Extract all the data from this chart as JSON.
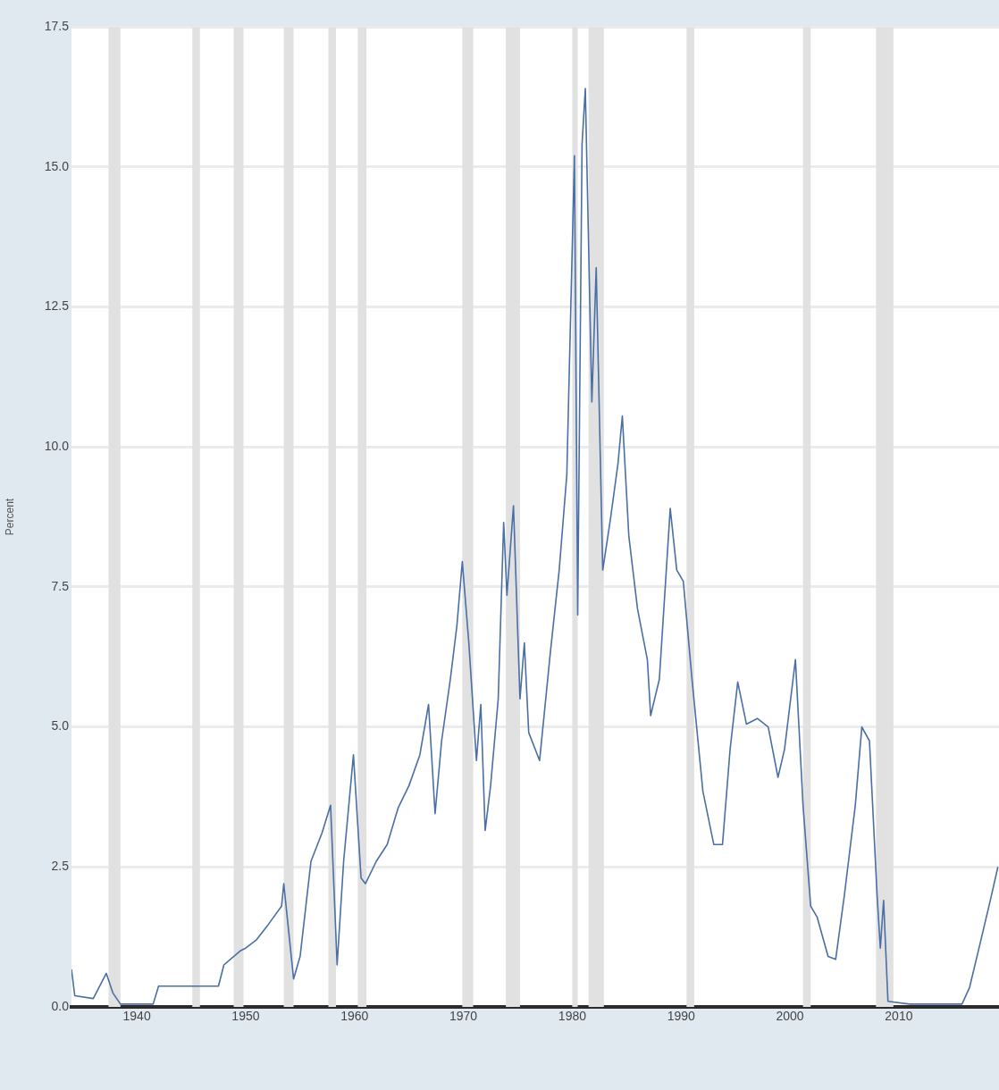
{
  "chart_data": {
    "type": "line",
    "ylabel": "Percent",
    "x": [
      1934.0,
      1934.3,
      1936.0,
      1937.2,
      1937.8,
      1938.5,
      1941.5,
      1942.0,
      1947.5,
      1948.0,
      1949.5,
      1950.0,
      1951.0,
      1952.0,
      1953.3,
      1953.5,
      1954.4,
      1955.0,
      1956.0,
      1957.0,
      1957.8,
      1958.4,
      1959.0,
      1959.9,
      1960.6,
      1961.0,
      1962.0,
      1963.0,
      1964.0,
      1965.0,
      1966.0,
      1966.8,
      1967.4,
      1968.0,
      1968.8,
      1969.4,
      1969.9,
      1970.5,
      1971.2,
      1971.6,
      1972.0,
      1972.5,
      1973.2,
      1973.7,
      1974.0,
      1974.6,
      1975.2,
      1975.6,
      1976.0,
      1977.0,
      1978.0,
      1978.8,
      1979.5,
      1980.2,
      1980.5,
      1980.9,
      1981.2,
      1981.8,
      1982.2,
      1982.8,
      1983.5,
      1984.2,
      1984.6,
      1985.2,
      1986.0,
      1986.9,
      1987.2,
      1988.0,
      1989.0,
      1989.6,
      1990.2,
      1991.0,
      1992.0,
      1993.0,
      1993.8,
      1994.5,
      1995.2,
      1996.0,
      1997.0,
      1998.0,
      1998.9,
      1999.5,
      2000.5,
      2001.2,
      2001.9,
      2002.5,
      2003.5,
      2004.2,
      2005.0,
      2006.0,
      2006.6,
      2007.3,
      2008.0,
      2008.3,
      2008.6,
      2009.0,
      2011.0,
      2015.8,
      2016.5,
      2017.3,
      2018.4,
      2019.1
    ],
    "series": [
      {
        "color": "#4a6fa5",
        "values": [
          0.67,
          0.2,
          0.15,
          0.6,
          0.25,
          0.05,
          0.05,
          0.37,
          0.37,
          0.75,
          1.0,
          1.05,
          1.2,
          1.45,
          1.8,
          2.2,
          0.5,
          0.9,
          2.6,
          3.1,
          3.6,
          0.75,
          2.6,
          4.5,
          2.3,
          2.2,
          2.6,
          2.9,
          3.55,
          3.95,
          4.5,
          5.4,
          3.45,
          4.75,
          5.85,
          6.8,
          7.95,
          6.5,
          4.4,
          5.4,
          3.15,
          3.95,
          5.5,
          8.65,
          7.35,
          8.95,
          5.5,
          6.5,
          4.9,
          4.4,
          6.35,
          7.8,
          9.5,
          15.2,
          7.0,
          15.4,
          16.4,
          10.8,
          13.2,
          7.8,
          8.7,
          9.7,
          10.55,
          8.4,
          7.1,
          6.2,
          5.2,
          5.85,
          8.9,
          7.8,
          7.6,
          5.85,
          3.85,
          2.9,
          2.9,
          4.6,
          5.8,
          5.05,
          5.15,
          5.0,
          4.1,
          4.6,
          6.2,
          3.6,
          1.8,
          1.6,
          0.9,
          0.85,
          2.0,
          3.6,
          5.0,
          4.75,
          2.0,
          1.05,
          1.9,
          0.1,
          0.05,
          0.05,
          0.35,
          1.0,
          1.9,
          2.5
        ]
      }
    ],
    "xlim": [
      1934,
      2019.2
    ],
    "xticks": [
      1940,
      1950,
      1960,
      1970,
      1980,
      1990,
      2000,
      2010
    ],
    "ylim": [
      0,
      17.5
    ],
    "yticks": [
      {
        "value": 0,
        "label": "0.0"
      },
      {
        "value": 2.5,
        "label": "2.5"
      },
      {
        "value": 5,
        "label": "5.0"
      },
      {
        "value": 7.5,
        "label": "7.5"
      },
      {
        "value": 10,
        "label": "10.0"
      },
      {
        "value": 12.5,
        "label": "12.5"
      },
      {
        "value": 15,
        "label": "15.0"
      },
      {
        "value": 17.5,
        "label": "17.5"
      }
    ],
    "grid": "y",
    "legend": false,
    "marker": "none",
    "line_style": "solid",
    "bands": [
      {
        "axis": "x",
        "from": 1937.4,
        "to": 1938.5,
        "color": "#e1e1e1"
      },
      {
        "axis": "x",
        "from": 1945.1,
        "to": 1945.8,
        "color": "#e1e1e1"
      },
      {
        "axis": "x",
        "from": 1948.9,
        "to": 1949.8,
        "color": "#e1e1e1"
      },
      {
        "axis": "x",
        "from": 1953.5,
        "to": 1954.4,
        "color": "#e1e1e1"
      },
      {
        "axis": "x",
        "from": 1957.6,
        "to": 1958.3,
        "color": "#e1e1e1"
      },
      {
        "axis": "x",
        "from": 1960.3,
        "to": 1961.1,
        "color": "#e1e1e1"
      },
      {
        "axis": "x",
        "from": 1969.9,
        "to": 1970.9,
        "color": "#e1e1e1"
      },
      {
        "axis": "x",
        "from": 1973.9,
        "to": 1975.2,
        "color": "#e1e1e1"
      },
      {
        "axis": "x",
        "from": 1980.0,
        "to": 1980.5,
        "color": "#e1e1e1"
      },
      {
        "axis": "x",
        "from": 1981.5,
        "to": 1982.9,
        "color": "#e1e1e1"
      },
      {
        "axis": "x",
        "from": 1990.5,
        "to": 1991.2,
        "color": "#e1e1e1"
      },
      {
        "axis": "x",
        "from": 2001.2,
        "to": 2001.9,
        "color": "#e1e1e1"
      },
      {
        "axis": "x",
        "from": 2007.9,
        "to": 2009.5,
        "color": "#e1e1e1"
      }
    ]
  }
}
